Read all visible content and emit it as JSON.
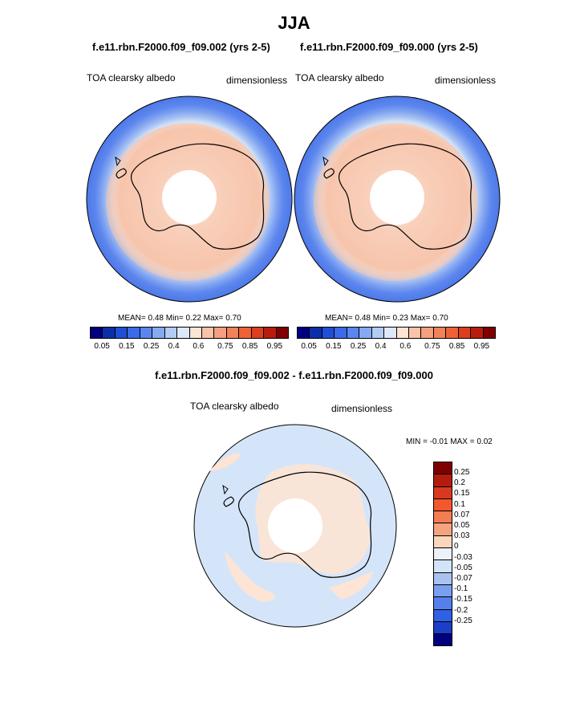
{
  "title": "JJA",
  "panels": [
    {
      "case_title": "f.e11.rbn.F2000.f09_f09.002 (yrs 2-5)",
      "variable": "TOA clearsky albedo",
      "units": "dimensionless",
      "stats": {
        "mean_label": "MEAN=",
        "mean": "0.48",
        "min_label": "Min=",
        "min": "0.22",
        "max_label": "Max=",
        "max": "0.70"
      }
    },
    {
      "case_title": "f.e11.rbn.F2000.f09_f09.000 (yrs 2-5)",
      "variable": "TOA clearsky albedo",
      "units": "dimensionless",
      "stats": {
        "mean_label": "MEAN=",
        "mean": "0.48",
        "min_label": "Min=",
        "min": "0.23",
        "max_label": "Max=",
        "max": "0.70"
      }
    }
  ],
  "diff_panel": {
    "title": "f.e11.rbn.F2000.f09_f09.002 - f.e11.rbn.F2000.f09_f09.000",
    "variable": "TOA clearsky albedo",
    "units": "dimensionless",
    "minmax": "MIN = -0.01 MAX = 0.02"
  },
  "chart_data": [
    {
      "type": "heatmap",
      "projection": "south polar stereographic",
      "colorbar_orientation": "horizontal",
      "colorbar_colors": [
        "#000080",
        "#0a2fa8",
        "#1f4fd6",
        "#3b6ae8",
        "#5b86f0",
        "#86a9f4",
        "#b3ccf6",
        "#dde9f8",
        "#fde4d4",
        "#f8c3a8",
        "#f5a07e",
        "#f2825a",
        "#ef6236",
        "#dd3e1e",
        "#b91c0c",
        "#800000"
      ],
      "colorbar_labels": [
        "0.05",
        "0.15",
        "0.25",
        "0.4",
        "0.6",
        "0.75",
        "0.85",
        "0.95"
      ],
      "mean": 0.48,
      "min": 0.22,
      "max": 0.7
    },
    {
      "type": "heatmap",
      "projection": "south polar stereographic",
      "colorbar_orientation": "horizontal",
      "colorbar_colors": [
        "#000080",
        "#0a2fa8",
        "#1f4fd6",
        "#3b6ae8",
        "#5b86f0",
        "#86a9f4",
        "#b3ccf6",
        "#dde9f8",
        "#fde4d4",
        "#f8c3a8",
        "#f5a07e",
        "#f2825a",
        "#ef6236",
        "#dd3e1e",
        "#b91c0c",
        "#800000"
      ],
      "colorbar_labels": [
        "0.05",
        "0.15",
        "0.25",
        "0.4",
        "0.6",
        "0.75",
        "0.85",
        "0.95"
      ],
      "mean": 0.48,
      "min": 0.23,
      "max": 0.7
    },
    {
      "type": "heatmap",
      "projection": "south polar stereographic",
      "colorbar_orientation": "vertical",
      "colorbar_colors": [
        "#800000",
        "#b31d0d",
        "#d93a1f",
        "#f4582e",
        "#f27d52",
        "#f3a47f",
        "#fbd6bd",
        "#edf1f8",
        "#d3e3f8",
        "#a9c2f3",
        "#7b9ff0",
        "#5580ec",
        "#3060e4",
        "#1b3fc8",
        "#000080"
      ],
      "colorbar_labels": [
        "0.25",
        "0.2",
        "0.15",
        "0.1",
        "0.07",
        "0.05",
        "0.03",
        "0",
        "-0.03",
        "-0.05",
        "-0.07",
        "-0.1",
        "-0.15",
        "-0.2",
        "-0.25"
      ],
      "min": -0.01,
      "max": 0.02
    }
  ]
}
